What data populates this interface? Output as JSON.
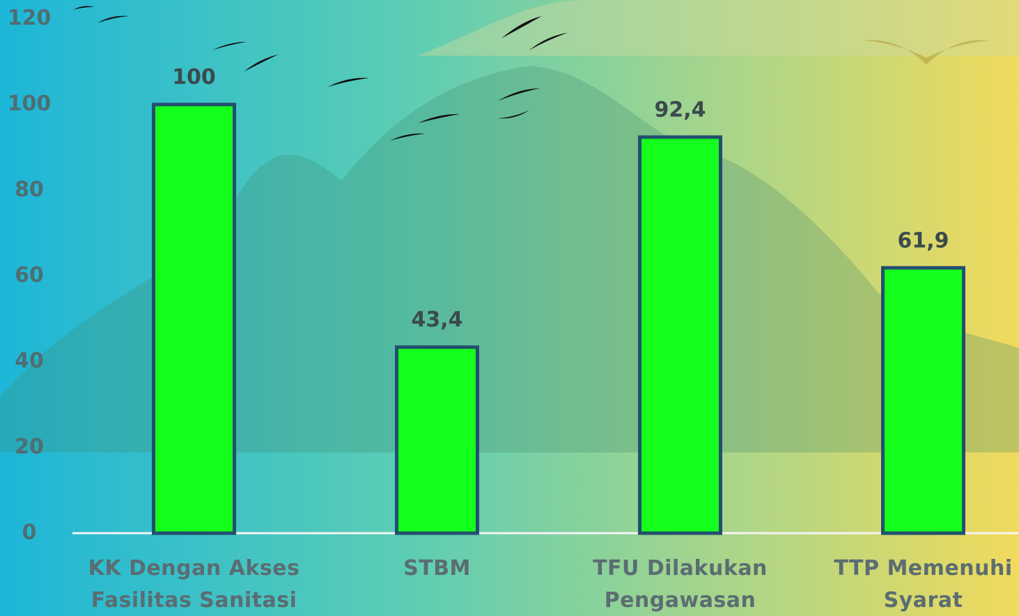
{
  "chart_data": {
    "type": "bar",
    "categories": [
      "KK Dengan Akses Fasilitas Sanitasi",
      "STBM",
      "TFU Dilakukan Pengawasan",
      "TTP Memenuhi Syarat"
    ],
    "values": [
      100,
      43.4,
      92.4,
      61.9
    ],
    "value_labels": [
      "100",
      "43,4",
      "92,4",
      "61,9"
    ],
    "color": "#14ff1c",
    "ylim": [
      0,
      120
    ],
    "yticks": [
      0,
      20,
      40,
      60,
      80,
      100,
      120
    ],
    "grid": false
  }
}
